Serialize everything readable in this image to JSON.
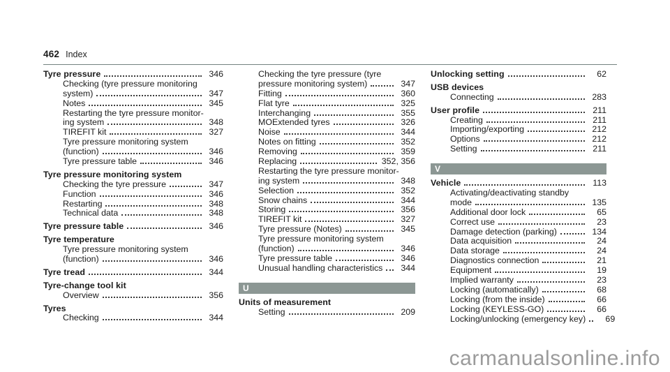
{
  "header": {
    "page_number": "462",
    "chapter": "Index"
  },
  "watermark": {
    "text": "carmanualsonline.info"
  },
  "colors": {
    "text": "#1b1b1b",
    "section_bar": "#8c9794",
    "rule": "#73827f",
    "watermark": "#9b9b9b"
  },
  "columns": [
    {
      "lines": [
        {
          "t": "entry",
          "text": "Tyre pressure",
          "bold": true,
          "indent": 0,
          "num": "346"
        },
        {
          "t": "entry",
          "text": "Checking (tyre pressure monitoring",
          "indent": 1
        },
        {
          "t": "entry",
          "text": "system)",
          "indent": 1,
          "num": "347"
        },
        {
          "t": "entry",
          "text": "Notes",
          "indent": 1,
          "num": "345"
        },
        {
          "t": "entry",
          "text": "Restarting the tyre pressure monitor-",
          "indent": 1
        },
        {
          "t": "entry",
          "text": "ing system",
          "indent": 1,
          "num": "348"
        },
        {
          "t": "entry",
          "text": "TIREFIT kit",
          "indent": 1,
          "num": "327"
        },
        {
          "t": "entry",
          "text": "Tyre pressure monitoring system",
          "indent": 1
        },
        {
          "t": "entry",
          "text": "(function)",
          "indent": 1,
          "num": "346"
        },
        {
          "t": "entry",
          "text": "Tyre pressure table",
          "indent": 1,
          "num": "346"
        },
        {
          "t": "entry",
          "text": "Tyre pressure monitoring system",
          "bold": true,
          "indent": 0,
          "gap": true
        },
        {
          "t": "entry",
          "text": "Checking the tyre pressure",
          "indent": 1,
          "num": "347"
        },
        {
          "t": "entry",
          "text": "Function",
          "indent": 1,
          "num": "346"
        },
        {
          "t": "entry",
          "text": "Restarting",
          "indent": 1,
          "num": "348"
        },
        {
          "t": "entry",
          "text": "Technical data",
          "indent": 1,
          "num": "348"
        },
        {
          "t": "entry",
          "text": "Tyre pressure table",
          "bold": true,
          "indent": 0,
          "num": "346",
          "gap": true
        },
        {
          "t": "entry",
          "text": "Tyre temperature",
          "bold": true,
          "indent": 0,
          "gap": true
        },
        {
          "t": "entry",
          "text": "Tyre pressure monitoring system",
          "indent": 1
        },
        {
          "t": "entry",
          "text": "(function)",
          "indent": 1,
          "num": "346"
        },
        {
          "t": "entry",
          "text": "Tyre tread",
          "bold": true,
          "indent": 0,
          "num": "344",
          "gap": true
        },
        {
          "t": "entry",
          "text": "Tyre-change tool kit",
          "bold": true,
          "indent": 0,
          "gap": true
        },
        {
          "t": "entry",
          "text": "Overview",
          "indent": 1,
          "num": "356"
        },
        {
          "t": "entry",
          "text": "Tyres",
          "bold": true,
          "indent": 0,
          "gap": true
        },
        {
          "t": "entry",
          "text": "Checking",
          "indent": 1,
          "num": "344"
        }
      ]
    },
    {
      "lines": [
        {
          "t": "entry",
          "text": "Checking the tyre pressure (tyre",
          "indent": 1
        },
        {
          "t": "entry",
          "text": "pressure monitoring system)",
          "indent": 1,
          "num": "347"
        },
        {
          "t": "entry",
          "text": "Fitting",
          "indent": 1,
          "num": "360"
        },
        {
          "t": "entry",
          "text": "Flat tyre",
          "indent": 1,
          "num": "325"
        },
        {
          "t": "entry",
          "text": "Interchanging",
          "indent": 1,
          "num": "355"
        },
        {
          "t": "entry",
          "text": "MOExtended tyres",
          "indent": 1,
          "num": "326"
        },
        {
          "t": "entry",
          "text": "Noise",
          "indent": 1,
          "num": "344"
        },
        {
          "t": "entry",
          "text": "Notes on fitting",
          "indent": 1,
          "num": "352"
        },
        {
          "t": "entry",
          "text": "Removing",
          "indent": 1,
          "num": "359"
        },
        {
          "t": "entry",
          "text": "Replacing",
          "indent": 1,
          "num": "352, 356"
        },
        {
          "t": "entry",
          "text": "Restarting the tyre pressure monitor-",
          "indent": 1
        },
        {
          "t": "entry",
          "text": "ing system",
          "indent": 1,
          "num": "348"
        },
        {
          "t": "entry",
          "text": "Selection",
          "indent": 1,
          "num": "352"
        },
        {
          "t": "entry",
          "text": "Snow chains",
          "indent": 1,
          "num": "344"
        },
        {
          "t": "entry",
          "text": "Storing",
          "indent": 1,
          "num": "356"
        },
        {
          "t": "entry",
          "text": "TIREFIT kit",
          "indent": 1,
          "num": "327"
        },
        {
          "t": "entry",
          "text": "Tyre pressure (Notes)",
          "indent": 1,
          "num": "345"
        },
        {
          "t": "entry",
          "text": "Tyre pressure monitoring system",
          "indent": 1
        },
        {
          "t": "entry",
          "text": "(function)",
          "indent": 1,
          "num": "346"
        },
        {
          "t": "entry",
          "text": "Tyre pressure table",
          "indent": 1,
          "num": "346"
        },
        {
          "t": "entry",
          "text": "Unusual handling characteristics",
          "indent": 1,
          "num": "344"
        },
        {
          "t": "section",
          "letter": "U"
        },
        {
          "t": "entry",
          "text": "Units of measurement",
          "bold": true,
          "indent": 0
        },
        {
          "t": "entry",
          "text": "Setting",
          "indent": 1,
          "num": "209"
        }
      ]
    },
    {
      "lines": [
        {
          "t": "entry",
          "text": "Unlocking setting",
          "bold": true,
          "indent": 0,
          "num": "62"
        },
        {
          "t": "entry",
          "text": "USB devices",
          "bold": true,
          "indent": 0,
          "gap": true
        },
        {
          "t": "entry",
          "text": "Connecting",
          "indent": 1,
          "num": "283"
        },
        {
          "t": "entry",
          "text": "User profile",
          "bold": true,
          "indent": 0,
          "num": "211",
          "gap": true
        },
        {
          "t": "entry",
          "text": "Creating",
          "indent": 1,
          "num": "211"
        },
        {
          "t": "entry",
          "text": "Importing/exporting",
          "indent": 1,
          "num": "212"
        },
        {
          "t": "entry",
          "text": "Options",
          "indent": 1,
          "num": "212"
        },
        {
          "t": "entry",
          "text": "Setting",
          "indent": 1,
          "num": "211"
        },
        {
          "t": "section",
          "letter": "V"
        },
        {
          "t": "entry",
          "text": "Vehicle",
          "bold": true,
          "indent": 0,
          "num": "113"
        },
        {
          "t": "entry",
          "text": "Activating/deactivating standby",
          "indent": 1
        },
        {
          "t": "entry",
          "text": "mode",
          "indent": 1,
          "num": "135"
        },
        {
          "t": "entry",
          "text": "Additional door lock",
          "indent": 1,
          "num": "65"
        },
        {
          "t": "entry",
          "text": "Correct use",
          "indent": 1,
          "num": "23"
        },
        {
          "t": "entry",
          "text": "Damage detection (parking)",
          "indent": 1,
          "num": "134"
        },
        {
          "t": "entry",
          "text": "Data acquisition",
          "indent": 1,
          "num": "24"
        },
        {
          "t": "entry",
          "text": "Data storage",
          "indent": 1,
          "num": "24"
        },
        {
          "t": "entry",
          "text": "Diagnostics connection",
          "indent": 1,
          "num": "21"
        },
        {
          "t": "entry",
          "text": "Equipment",
          "indent": 1,
          "num": "19"
        },
        {
          "t": "entry",
          "text": "Implied warranty",
          "indent": 1,
          "num": "23"
        },
        {
          "t": "entry",
          "text": "Locking (automatically)",
          "indent": 1,
          "num": "68"
        },
        {
          "t": "entry",
          "text": "Locking (from the inside)",
          "indent": 1,
          "num": "66"
        },
        {
          "t": "entry",
          "text": "Locking (KEYLESS-GO)",
          "indent": 1,
          "num": "66"
        },
        {
          "t": "entry",
          "text": "Locking/unlocking (emergency key)",
          "indent": 1,
          "num": "69"
        }
      ]
    }
  ]
}
